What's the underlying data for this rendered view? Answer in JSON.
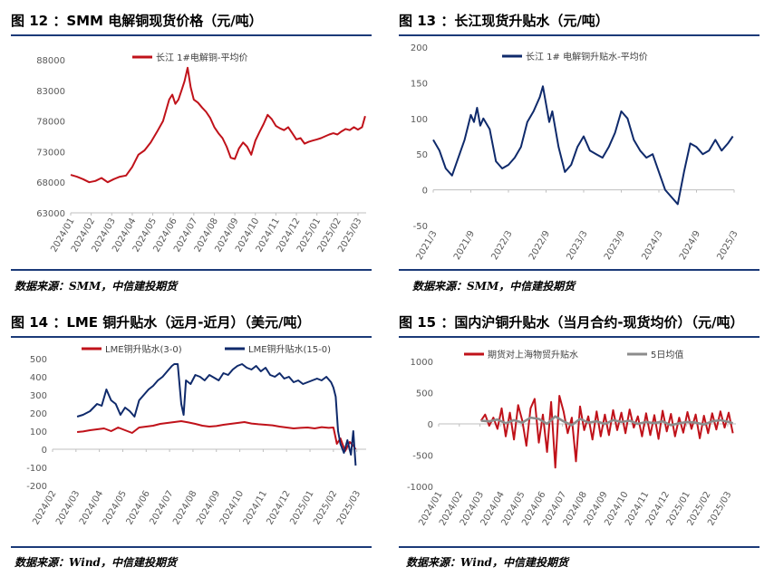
{
  "colors": {
    "red": "#c0121a",
    "navy": "#0f2a6b",
    "gray": "#8c8c8c",
    "rule": "#1b3a78"
  },
  "panels": [
    {
      "title": "图 12 ：SMM 电解铜现货价格（元/吨）",
      "source": "数据来源：SMM，中信建投期货"
    },
    {
      "title": "图 13 ：长江现货升贴水（元/吨）",
      "source": "数据来源：SMM，中信建投期货"
    },
    {
      "title": "图 14 ：LME 铜升贴水（远月-近月）（美元/吨）",
      "source": "数据来源：Wind，中信建投期货"
    },
    {
      "title": "图 15 ：国内沪铜升贴水（当月合约-现货均价）（元/吨）",
      "source": "数据来源：Wind，中信建投期货"
    }
  ],
  "chart_data": [
    {
      "type": "line",
      "title": "SMM 电解铜现货价格（元/吨）",
      "xlabel": "",
      "ylabel": "",
      "ylim": [
        63000,
        88000
      ],
      "yticks": [
        63000,
        68000,
        73000,
        78000,
        83000,
        88000
      ],
      "xticks": [
        "2024/01",
        "2024/02",
        "2024/03",
        "2024/04",
        "2024/05",
        "2024/06",
        "2024/07",
        "2024/08",
        "2024/09",
        "2024/10",
        "2024/11",
        "2024/12",
        "2025/01",
        "2025/02",
        "2025/03"
      ],
      "x_range": [
        0,
        14.4
      ],
      "grid": false,
      "legend": "top",
      "series": [
        {
          "name": "长江 1#电解铜-平均价",
          "color": "#c0121a",
          "x": [
            0,
            0.3,
            0.6,
            0.9,
            1.2,
            1.5,
            1.8,
            2.1,
            2.4,
            2.7,
            3.0,
            3.3,
            3.6,
            3.9,
            4.2,
            4.5,
            4.8,
            4.95,
            5.1,
            5.25,
            5.4,
            5.55,
            5.7,
            5.85,
            6.0,
            6.2,
            6.4,
            6.6,
            6.8,
            7.0,
            7.2,
            7.4,
            7.6,
            7.8,
            8.0,
            8.2,
            8.4,
            8.6,
            8.8,
            9.0,
            9.2,
            9.4,
            9.6,
            9.8,
            10.0,
            10.2,
            10.4,
            10.6,
            10.8,
            11.0,
            11.2,
            11.4,
            11.6,
            11.8,
            12.0,
            12.2,
            12.4,
            12.6,
            12.8,
            13.0,
            13.2,
            13.4,
            13.6,
            13.8,
            14.0,
            14.2,
            14.35
          ],
          "y": [
            69200,
            68900,
            68500,
            68000,
            68200,
            68700,
            68000,
            68500,
            68900,
            69100,
            70500,
            72500,
            73200,
            74500,
            76200,
            78000,
            81500,
            82300,
            80800,
            81500,
            83000,
            84500,
            86700,
            83500,
            81500,
            81000,
            80200,
            79500,
            78500,
            77000,
            76000,
            75200,
            73800,
            72000,
            71800,
            73500,
            74500,
            73800,
            72500,
            74800,
            76200,
            77500,
            79000,
            78300,
            77200,
            76800,
            76500,
            77000,
            76000,
            75000,
            75200,
            74300,
            74600,
            74800,
            75000,
            75200,
            75500,
            75800,
            76000,
            75800,
            76300,
            76700,
            76500,
            77000,
            76600,
            77000,
            78800
          ]
        }
      ]
    },
    {
      "type": "line",
      "title": "长江现货升贴水（元/吨）",
      "xlabel": "",
      "ylabel": "",
      "ylim": [
        -50,
        200
      ],
      "yticks": [
        -50,
        0,
        50,
        100,
        150,
        200
      ],
      "xticks": [
        "2021/3",
        "2021/9",
        "2022/3",
        "2022/9",
        "2023/3",
        "2023/9",
        "2024/3",
        "2024/9",
        "2025/3"
      ],
      "x_range": [
        0,
        48
      ],
      "grid": false,
      "legend": "top",
      "series": [
        {
          "name": "长江 1# 电解铜升贴水-平均价",
          "color": "#0f2a6b",
          "x": [
            0,
            1,
            2,
            3,
            4,
            5,
            6,
            6.5,
            7,
            7.5,
            8,
            9,
            10,
            11,
            12,
            13,
            14,
            15,
            16,
            17,
            17.5,
            18,
            18.5,
            19,
            20,
            21,
            22,
            23,
            24,
            25,
            26,
            27,
            28,
            29,
            30,
            31,
            32,
            33,
            34,
            35,
            36,
            37,
            38,
            39,
            40,
            41,
            42,
            43,
            44,
            45,
            46,
            47,
            47.8
          ],
          "y": [
            70,
            55,
            30,
            20,
            45,
            70,
            105,
            95,
            115,
            90,
            100,
            85,
            40,
            30,
            35,
            45,
            60,
            95,
            110,
            130,
            145,
            120,
            95,
            110,
            60,
            25,
            35,
            60,
            75,
            55,
            50,
            45,
            60,
            80,
            110,
            100,
            70,
            55,
            45,
            50,
            25,
            0,
            -10,
            -20,
            25,
            65,
            60,
            50,
            55,
            70,
            55,
            65,
            75
          ]
        }
      ]
    },
    {
      "type": "line",
      "title": "LME 铜升贴水（远月-近月）（美元/吨）",
      "xlabel": "",
      "ylabel": "",
      "ylim": [
        -200,
        500
      ],
      "yticks": [
        -200,
        -100,
        0,
        100,
        200,
        300,
        400,
        500
      ],
      "xticks": [
        "2024/02",
        "2024/03",
        "2024/04",
        "2024/05",
        "2024/06",
        "2024/07",
        "2024/08",
        "2024/09",
        "2024/10",
        "2024/11",
        "2024/12",
        "2025/01",
        "2025/02",
        "2025/03"
      ],
      "x_range": [
        0,
        13.4
      ],
      "grid": false,
      "legend": "top",
      "series": [
        {
          "name": "LME铜升贴水(3-0)",
          "color": "#c0121a",
          "x": [
            1.05,
            1.3,
            1.6,
            1.9,
            2.2,
            2.5,
            2.8,
            3.1,
            3.4,
            3.7,
            4.0,
            4.3,
            4.6,
            4.9,
            5.2,
            5.5,
            5.8,
            6.1,
            6.4,
            6.7,
            7.0,
            7.3,
            7.6,
            7.9,
            8.2,
            8.5,
            8.8,
            9.1,
            9.4,
            9.7,
            10.0,
            10.3,
            10.6,
            10.9,
            11.2,
            11.5,
            11.8,
            12.0,
            12.15,
            12.3,
            12.5,
            12.7,
            12.85,
            12.95
          ],
          "y": [
            95,
            98,
            105,
            110,
            115,
            100,
            120,
            105,
            90,
            120,
            125,
            130,
            140,
            145,
            150,
            155,
            148,
            140,
            130,
            125,
            128,
            135,
            140,
            145,
            150,
            142,
            138,
            135,
            132,
            125,
            120,
            115,
            118,
            120,
            115,
            122,
            118,
            120,
            30,
            60,
            -10,
            40,
            20,
            0
          ]
        },
        {
          "name": "LME铜升贴水(15-0)",
          "color": "#0f2a6b",
          "x": [
            1.05,
            1.3,
            1.6,
            1.9,
            2.1,
            2.3,
            2.5,
            2.7,
            2.9,
            3.1,
            3.3,
            3.5,
            3.7,
            3.9,
            4.1,
            4.3,
            4.5,
            4.7,
            4.9,
            5.1,
            5.2,
            5.35,
            5.5,
            5.6,
            5.7,
            5.9,
            6.1,
            6.3,
            6.5,
            6.7,
            6.9,
            7.1,
            7.3,
            7.5,
            7.7,
            7.9,
            8.1,
            8.3,
            8.5,
            8.7,
            8.9,
            9.1,
            9.3,
            9.5,
            9.7,
            9.9,
            10.1,
            10.3,
            10.5,
            10.7,
            10.9,
            11.1,
            11.3,
            11.5,
            11.7,
            11.9,
            12.0,
            12.1,
            12.2,
            12.3,
            12.45,
            12.6,
            12.75,
            12.85,
            12.95
          ],
          "y": [
            180,
            190,
            210,
            250,
            240,
            330,
            270,
            250,
            190,
            230,
            210,
            180,
            270,
            300,
            330,
            350,
            380,
            400,
            430,
            460,
            470,
            470,
            250,
            190,
            380,
            360,
            410,
            400,
            380,
            410,
            395,
            380,
            420,
            410,
            440,
            460,
            470,
            450,
            440,
            460,
            430,
            450,
            410,
            400,
            420,
            390,
            400,
            370,
            380,
            360,
            370,
            380,
            390,
            380,
            400,
            370,
            340,
            290,
            100,
            30,
            -20,
            50,
            -30,
            100,
            -90
          ]
        }
      ]
    },
    {
      "type": "line",
      "title": "国内沪铜升贴水（当月合约-现货均价）（元/吨）",
      "xlabel": "",
      "ylabel": "",
      "ylim": [
        -1000,
        1000
      ],
      "yticks": [
        -1000,
        -500,
        0,
        500,
        1000
      ],
      "xticks": [
        "2024/01",
        "2024/02",
        "2024/03",
        "2024/04",
        "2024/05",
        "2024/06",
        "2024/07",
        "2024/08",
        "2024/09",
        "2024/10",
        "2024/11",
        "2024/12",
        "2025/01",
        "2025/02",
        "2025/03"
      ],
      "x_range": [
        0,
        14.4
      ],
      "grid": false,
      "legend": "top",
      "series": [
        {
          "name": "期货对上海物贸升贴水",
          "color": "#c0121a",
          "x": [
            2.05,
            2.25,
            2.45,
            2.65,
            2.85,
            3.05,
            3.25,
            3.45,
            3.65,
            3.85,
            4.05,
            4.25,
            4.45,
            4.65,
            4.85,
            5.05,
            5.25,
            5.45,
            5.65,
            5.85,
            6.05,
            6.25,
            6.45,
            6.65,
            6.85,
            7.05,
            7.25,
            7.45,
            7.65,
            7.85,
            8.05,
            8.25,
            8.45,
            8.65,
            8.85,
            9.05,
            9.25,
            9.45,
            9.65,
            9.85,
            10.05,
            10.25,
            10.45,
            10.65,
            10.85,
            11.05,
            11.25,
            11.45,
            11.65,
            11.85,
            12.05,
            12.25,
            12.45,
            12.65,
            12.85,
            13.05,
            13.25,
            13.45,
            13.65,
            13.85,
            14.05,
            14.25
          ],
          "y": [
            50,
            150,
            -30,
            100,
            -80,
            250,
            -200,
            180,
            -250,
            300,
            50,
            -350,
            250,
            400,
            -300,
            150,
            -450,
            350,
            -700,
            450,
            200,
            -150,
            100,
            -600,
            280,
            -100,
            120,
            -250,
            200,
            -200,
            150,
            -180,
            220,
            -100,
            180,
            -150,
            230,
            -60,
            120,
            -200,
            170,
            -180,
            140,
            -240,
            210,
            -120,
            160,
            -200,
            100,
            -140,
            190,
            -80,
            150,
            -230,
            130,
            -150,
            170,
            -90,
            200,
            -60,
            180,
            -150
          ]
        },
        {
          "name": "5日均值",
          "color": "#8c8c8c",
          "x": [
            2.05,
            2.45,
            2.85,
            3.25,
            3.65,
            4.05,
            4.45,
            4.85,
            5.25,
            5.65,
            6.05,
            6.45,
            6.85,
            7.25,
            7.65,
            8.05,
            8.45,
            8.85,
            9.25,
            9.65,
            10.05,
            10.45,
            10.85,
            11.25,
            11.65,
            12.05,
            12.45,
            12.85,
            13.25,
            13.65,
            14.05,
            14.25
          ],
          "y": [
            50,
            40,
            70,
            10,
            60,
            20,
            100,
            80,
            0,
            120,
            40,
            -20,
            80,
            20,
            40,
            0,
            60,
            30,
            50,
            0,
            30,
            10,
            40,
            -20,
            10,
            30,
            20,
            -10,
            40,
            60,
            30,
            10
          ]
        }
      ]
    }
  ]
}
